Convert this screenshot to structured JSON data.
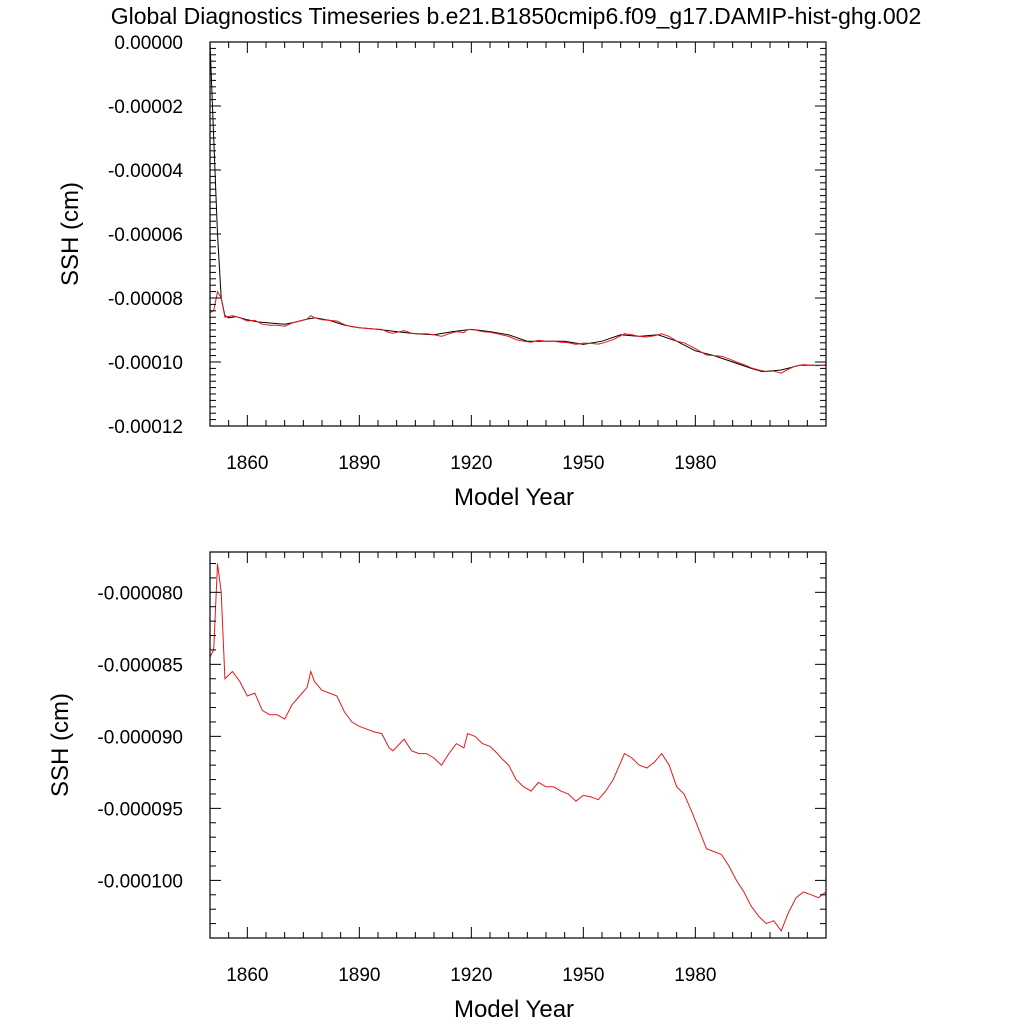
{
  "title": "Global Diagnostics Timeseries b.e21.B1850cmip6.f09_g17.DAMIP-hist-ghg.002",
  "colors": {
    "annual": "#000000",
    "smoothed": "#e41a1c",
    "frame": "#000000"
  },
  "chart_data": [
    {
      "type": "line",
      "xlabel": "Model Year",
      "ylabel": "SSH (cm)",
      "xlim": [
        1850,
        2015
      ],
      "ylim": [
        -0.00012,
        0.0
      ],
      "x_ticks": [
        1860,
        1890,
        1920,
        1950,
        1980
      ],
      "x_tick_labels": [
        "1860",
        "1890",
        "1920",
        "1950",
        "1980"
      ],
      "y_ticks": [
        0.0,
        -2e-05,
        -4e-05,
        -6e-05,
        -8e-05,
        -0.0001,
        -0.00012
      ],
      "y_tick_labels": [
        "0.00000",
        "-0.00002",
        "-0.00004",
        "-0.00006",
        "-0.00008",
        "-0.00010",
        "-0.00012"
      ],
      "grid": false,
      "series": [
        {
          "x": [
            1850,
            1851,
            1852,
            1853,
            1854,
            1855,
            1857,
            1860,
            1863,
            1866,
            1870,
            1873,
            1876,
            1878,
            1882,
            1886,
            1890,
            1895,
            1900,
            1905,
            1910,
            1915,
            1920,
            1925,
            1930,
            1935,
            1940,
            1945,
            1950,
            1955,
            1960,
            1965,
            1970,
            1975,
            1980,
            1985,
            1990,
            1995,
            1998,
            2003,
            2008,
            2012,
            2015
          ],
          "y": [
            -0.0,
            -3e-05,
            -6e-05,
            -8e-05,
            -8.55e-05,
            -8.62e-05,
            -8.58e-05,
            -8.68e-05,
            -8.75e-05,
            -8.78e-05,
            -8.82e-05,
            -8.75e-05,
            -8.66e-05,
            -8.62e-05,
            -8.7e-05,
            -8.85e-05,
            -8.93e-05,
            -8.98e-05,
            -9.05e-05,
            -9.12e-05,
            -9.15e-05,
            -9.05e-05,
            -8.98e-05,
            -9.05e-05,
            -9.15e-05,
            -9.35e-05,
            -9.35e-05,
            -9.35e-05,
            -9.45e-05,
            -9.35e-05,
            -9.15e-05,
            -9.2e-05,
            -9.15e-05,
            -9.35e-05,
            -9.65e-05,
            -9.8e-05,
            -0.0001,
            -0.000102,
            -0.000103,
            -0.0001025,
            -0.000101,
            -0.000101,
            -0.000101
          ]
        },
        {
          "x": [
            1850,
            1851,
            1852,
            1853,
            1854,
            1856,
            1858,
            1860,
            1862,
            1864,
            1866,
            1868,
            1870,
            1872,
            1874,
            1876,
            1877,
            1878,
            1880,
            1882,
            1884,
            1886,
            1888,
            1890,
            1892,
            1894,
            1896,
            1898,
            1899,
            1902,
            1904,
            1906,
            1908,
            1910,
            1912,
            1914,
            1916,
            1918,
            1919,
            1921,
            1923,
            1925,
            1927,
            1928,
            1930,
            1932,
            1934,
            1936,
            1938,
            1940,
            1942,
            1944,
            1946,
            1948,
            1950,
            1952,
            1954,
            1956,
            1958,
            1960,
            1961,
            1963,
            1965,
            1967,
            1969,
            1971,
            1973,
            1975,
            1977,
            1979,
            1981,
            1983,
            1985,
            1987,
            1989,
            1991,
            1993,
            1995,
            1997,
            1999,
            2001,
            2003,
            2005,
            2007,
            2009,
            2011,
            2013,
            2015
          ],
          "y": [
            -8.45e-05,
            -8.4e-05,
            -7.8e-05,
            -8e-05,
            -8.6e-05,
            -8.55e-05,
            -8.62e-05,
            -8.72e-05,
            -8.7e-05,
            -8.82e-05,
            -8.85e-05,
            -8.85e-05,
            -8.88e-05,
            -8.78e-05,
            -8.72e-05,
            -8.66e-05,
            -8.55e-05,
            -8.62e-05,
            -8.68e-05,
            -8.7e-05,
            -8.72e-05,
            -8.83e-05,
            -8.9e-05,
            -8.93e-05,
            -8.95e-05,
            -8.97e-05,
            -8.98e-05,
            -9.08e-05,
            -9.1e-05,
            -9.02e-05,
            -9.1e-05,
            -9.12e-05,
            -9.12e-05,
            -9.15e-05,
            -9.2e-05,
            -9.12e-05,
            -9.05e-05,
            -9.08e-05,
            -8.98e-05,
            -9e-05,
            -9.05e-05,
            -9.07e-05,
            -9.12e-05,
            -9.15e-05,
            -9.2e-05,
            -9.3e-05,
            -9.35e-05,
            -9.38e-05,
            -9.32e-05,
            -9.35e-05,
            -9.35e-05,
            -9.38e-05,
            -9.4e-05,
            -9.45e-05,
            -9.41e-05,
            -9.42e-05,
            -9.44e-05,
            -9.38e-05,
            -9.3e-05,
            -9.18e-05,
            -9.12e-05,
            -9.15e-05,
            -9.2e-05,
            -9.22e-05,
            -9.18e-05,
            -9.12e-05,
            -9.2e-05,
            -9.35e-05,
            -9.4e-05,
            -9.52e-05,
            -9.65e-05,
            -9.78e-05,
            -9.8e-05,
            -9.82e-05,
            -9.9e-05,
            -0.0001,
            -0.0001008,
            -0.0001018,
            -0.0001025,
            -0.000103,
            -0.0001028,
            -0.0001035,
            -0.0001022,
            -0.0001012,
            -0.0001008,
            -0.000101,
            -0.0001012,
            -0.0001008
          ]
        }
      ]
    },
    {
      "type": "line",
      "xlabel": "Model Year",
      "ylabel": "SSH (cm)",
      "xlim": [
        1850,
        2015
      ],
      "ylim": [
        -0.000104,
        -7.72e-05
      ],
      "x_ticks": [
        1860,
        1890,
        1920,
        1950,
        1980
      ],
      "x_tick_labels": [
        "1860",
        "1890",
        "1920",
        "1950",
        "1980"
      ],
      "y_ticks": [
        -8e-05,
        -8.5e-05,
        -9e-05,
        -9.5e-05,
        -0.0001
      ],
      "y_tick_labels": [
        "-0.000080",
        "-0.000085",
        "-0.000090",
        "-0.000095",
        "-0.000100"
      ],
      "grid": false,
      "series": [
        {
          "x": [
            1850,
            1851,
            1852,
            1853,
            1854,
            1856,
            1858,
            1860,
            1862,
            1864,
            1866,
            1868,
            1870,
            1872,
            1874,
            1876,
            1877,
            1878,
            1880,
            1882,
            1884,
            1886,
            1888,
            1890,
            1892,
            1894,
            1896,
            1898,
            1899,
            1902,
            1904,
            1906,
            1908,
            1910,
            1912,
            1914,
            1916,
            1918,
            1919,
            1921,
            1923,
            1925,
            1927,
            1928,
            1930,
            1932,
            1934,
            1936,
            1938,
            1940,
            1942,
            1944,
            1946,
            1948,
            1950,
            1952,
            1954,
            1956,
            1958,
            1960,
            1961,
            1963,
            1965,
            1967,
            1969,
            1971,
            1973,
            1975,
            1977,
            1979,
            1981,
            1983,
            1985,
            1987,
            1989,
            1991,
            1993,
            1995,
            1997,
            1999,
            2001,
            2003,
            2005,
            2007,
            2009,
            2011,
            2013,
            2015
          ],
          "y": [
            -8.45e-05,
            -8.4e-05,
            -7.8e-05,
            -8e-05,
            -8.6e-05,
            -8.55e-05,
            -8.62e-05,
            -8.72e-05,
            -8.7e-05,
            -8.82e-05,
            -8.85e-05,
            -8.85e-05,
            -8.88e-05,
            -8.78e-05,
            -8.72e-05,
            -8.66e-05,
            -8.55e-05,
            -8.62e-05,
            -8.68e-05,
            -8.7e-05,
            -8.72e-05,
            -8.83e-05,
            -8.9e-05,
            -8.93e-05,
            -8.95e-05,
            -8.97e-05,
            -8.98e-05,
            -9.08e-05,
            -9.1e-05,
            -9.02e-05,
            -9.1e-05,
            -9.12e-05,
            -9.12e-05,
            -9.15e-05,
            -9.2e-05,
            -9.12e-05,
            -9.05e-05,
            -9.08e-05,
            -8.98e-05,
            -9e-05,
            -9.05e-05,
            -9.07e-05,
            -9.12e-05,
            -9.15e-05,
            -9.2e-05,
            -9.3e-05,
            -9.35e-05,
            -9.38e-05,
            -9.32e-05,
            -9.35e-05,
            -9.35e-05,
            -9.38e-05,
            -9.4e-05,
            -9.45e-05,
            -9.41e-05,
            -9.42e-05,
            -9.44e-05,
            -9.38e-05,
            -9.3e-05,
            -9.18e-05,
            -9.12e-05,
            -9.15e-05,
            -9.2e-05,
            -9.22e-05,
            -9.18e-05,
            -9.12e-05,
            -9.2e-05,
            -9.35e-05,
            -9.4e-05,
            -9.52e-05,
            -9.65e-05,
            -9.78e-05,
            -9.8e-05,
            -9.82e-05,
            -9.9e-05,
            -0.0001,
            -0.0001008,
            -0.0001018,
            -0.0001025,
            -0.000103,
            -0.0001028,
            -0.0001035,
            -0.0001022,
            -0.0001012,
            -0.0001008,
            -0.000101,
            -0.0001012,
            -0.0001008
          ]
        }
      ]
    }
  ]
}
